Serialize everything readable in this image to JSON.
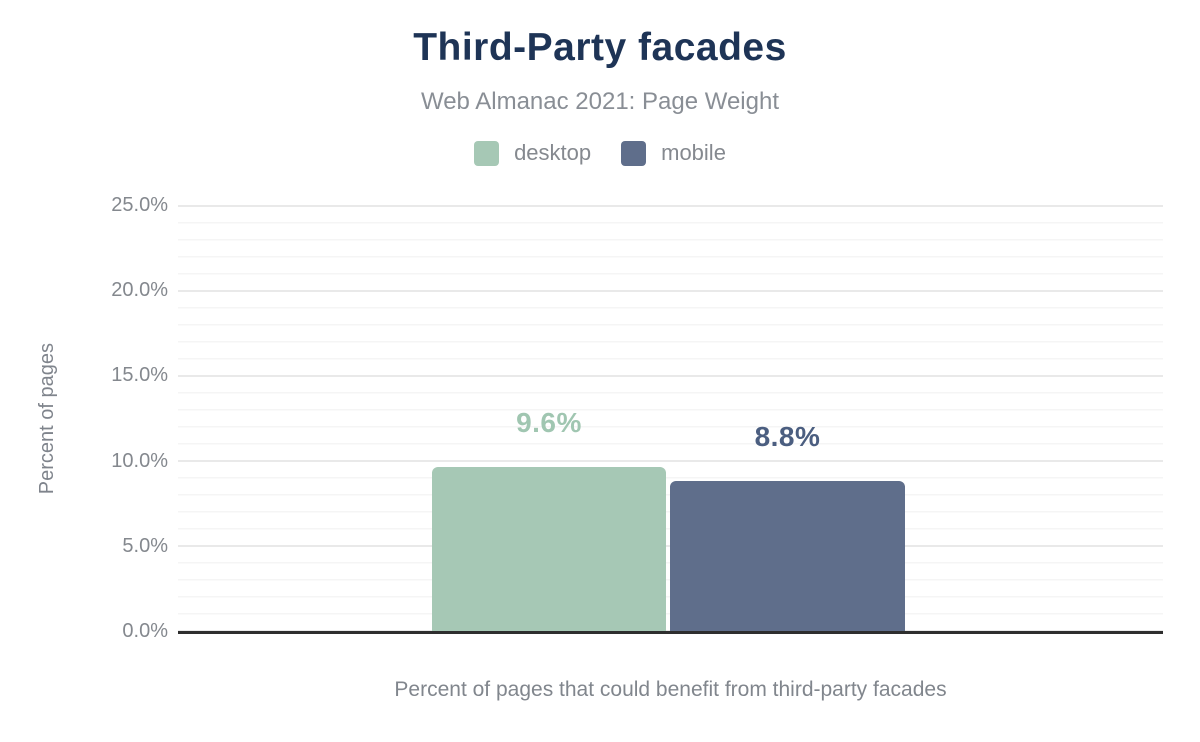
{
  "header": {
    "title": "Third-Party facades",
    "subtitle": "Web Almanac 2021: Page Weight"
  },
  "legend": {
    "items": [
      {
        "label": "desktop",
        "color": "#a6c8b5"
      },
      {
        "label": "mobile",
        "color": "#5f6e8b"
      }
    ]
  },
  "chart_data": {
    "type": "bar",
    "title": "Third-Party facades",
    "subtitle": "Web Almanac 2021: Page Weight",
    "categories": [
      "Percent of pages that could benefit from third-party facades"
    ],
    "series": [
      {
        "name": "desktop",
        "value": 9.6,
        "label": "9.6%",
        "color": "#a6c8b5",
        "label_color": "#a0c6b1"
      },
      {
        "name": "mobile",
        "value": 8.8,
        "label": "8.8%",
        "color": "#5f6e8b",
        "label_color": "#4b5e80"
      }
    ],
    "ylabel": "Percent of pages",
    "xlabel": "Percent of pages that could benefit from third-party facades",
    "ylim": [
      0,
      25
    ],
    "y_ticks": [
      "25.0%",
      "20.0%",
      "15.0%",
      "10.0%",
      "5.0%",
      "0.0%"
    ],
    "y_tick_values": [
      25,
      20,
      15,
      10,
      5,
      0
    ],
    "grid": "horizontal major every 5%, minor every 1%",
    "legend_position": "top"
  }
}
